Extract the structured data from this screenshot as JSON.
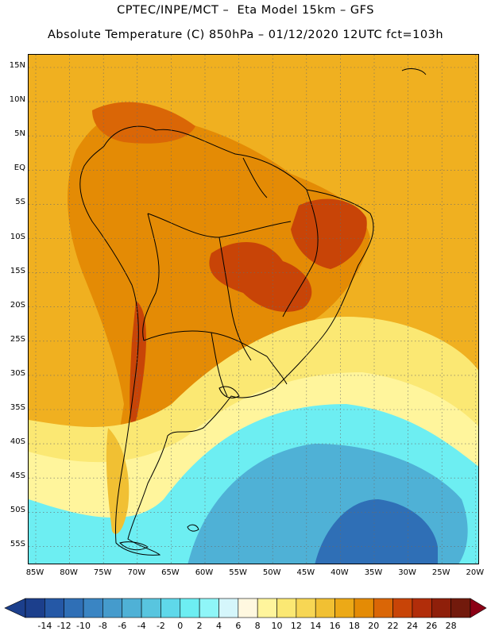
{
  "header": {
    "line1": "CPTEC/INPE/MCT –  Eta Model 15km – GFS",
    "line2": "Absolute Temperature (C) 850hPa – 01/12/2020 12UTC fct=103h"
  },
  "map": {
    "lat_labels": [
      "15N",
      "10N",
      "5N",
      "EQ",
      "5S",
      "10S",
      "15S",
      "20S",
      "25S",
      "30S",
      "35S",
      "40S",
      "45S",
      "50S",
      "55S"
    ],
    "lon_labels": [
      "85W",
      "80W",
      "75W",
      "70W",
      "65W",
      "60W",
      "55W",
      "50W",
      "45W",
      "40W",
      "35W",
      "30W",
      "25W",
      "20W"
    ]
  },
  "colorbar": {
    "labels": [
      "-14",
      "-12",
      "-10",
      "-8",
      "-6",
      "-4",
      "-2",
      "0",
      "2",
      "4",
      "6",
      "8",
      "10",
      "12",
      "14",
      "16",
      "18",
      "20",
      "22",
      "24",
      "26",
      "28"
    ],
    "colors": [
      "#1c3f8c",
      "#2558a6",
      "#2f6fb6",
      "#3a85c3",
      "#459bcc",
      "#4fb1d6",
      "#58c5df",
      "#5fd8ea",
      "#6deef2",
      "#8ff6f8",
      "#d5f6fb",
      "#fff8e0",
      "#fff59c",
      "#fbe873",
      "#f7d654",
      "#f1c033",
      "#eca917",
      "#e48b05",
      "#da6606",
      "#c84407",
      "#b12d0a",
      "#8f1f0a",
      "#721a0c"
    ],
    "left_arrow_color": "#1c3f8c",
    "right_arrow_color": "#8b0015"
  },
  "palette": {
    "background_field": "#f0b020",
    "warm": "#e48b05",
    "hot": "#c84407",
    "cool": "#fbe873",
    "cold": "#6deef2",
    "colder": "#4fb1d6",
    "coldest": "#2f6fb6"
  }
}
